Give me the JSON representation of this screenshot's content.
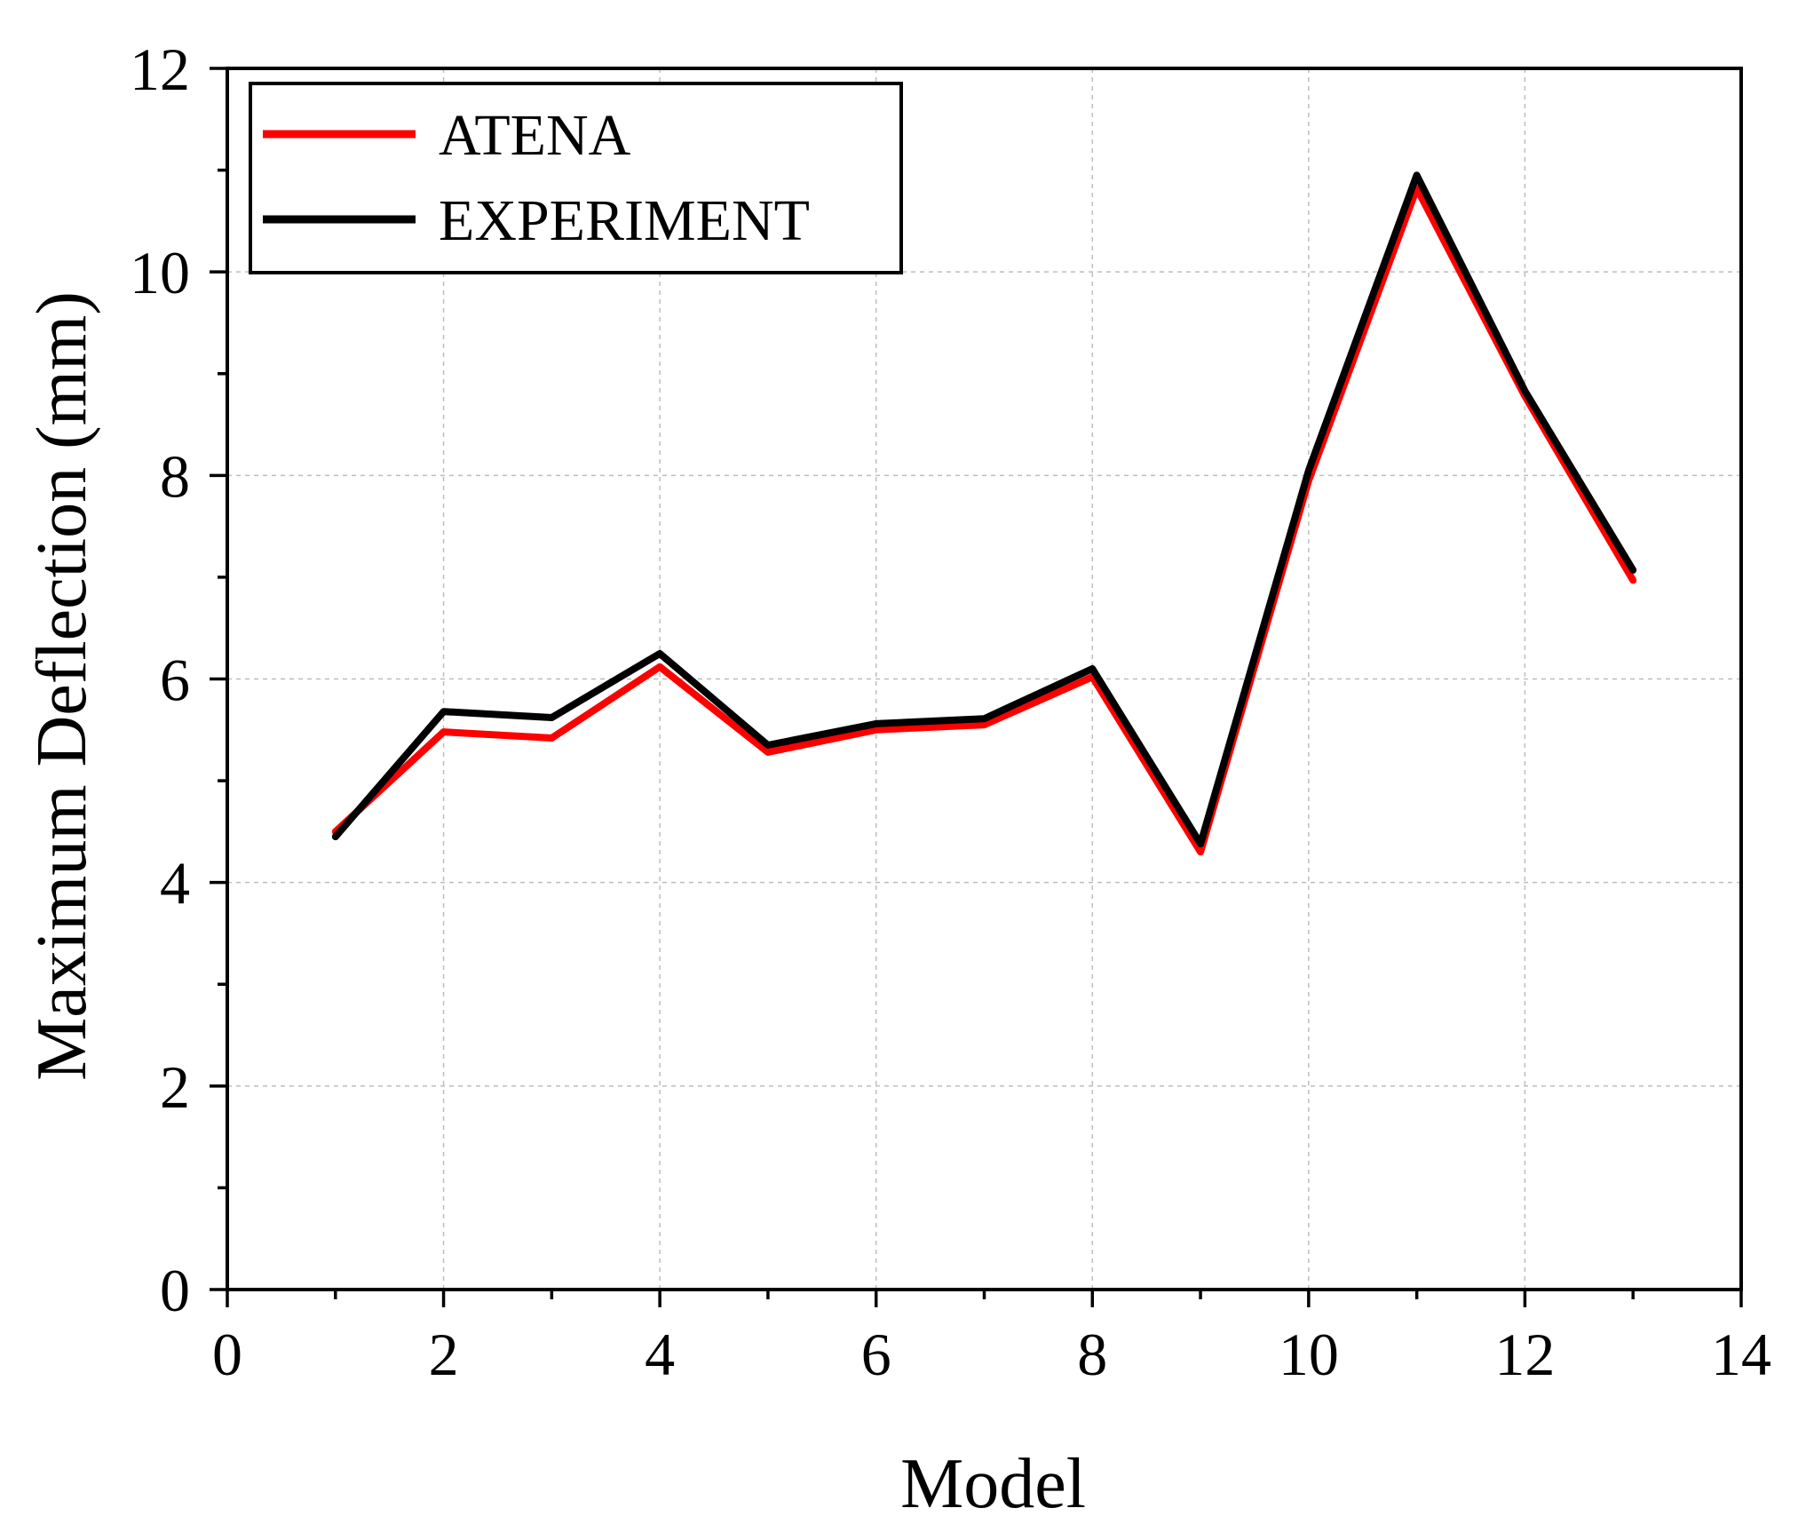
{
  "chart_data": {
    "type": "line",
    "title": "",
    "xlabel": "Model",
    "ylabel": "Maximum Deflection (mm)",
    "xlim": [
      0,
      14
    ],
    "ylim": [
      0,
      12
    ],
    "x_ticks": [
      0,
      2,
      4,
      6,
      8,
      10,
      12,
      14
    ],
    "y_ticks": [
      0,
      2,
      4,
      6,
      8,
      10,
      12
    ],
    "grid": true,
    "legend_position": "top-left",
    "x": [
      1,
      2,
      3,
      4,
      5,
      6,
      7,
      8,
      9,
      10,
      11,
      12,
      13
    ],
    "series": [
      {
        "name": "ATENA",
        "color": "#ff0000",
        "values": [
          4.5,
          5.48,
          5.42,
          6.12,
          5.28,
          5.5,
          5.55,
          6.02,
          4.3,
          7.95,
          10.82,
          8.78,
          6.97
        ]
      },
      {
        "name": "EXPERIMENT",
        "color": "#000000",
        "values": [
          4.45,
          5.68,
          5.62,
          6.25,
          5.35,
          5.56,
          5.61,
          6.1,
          4.38,
          8.05,
          10.95,
          8.83,
          7.07
        ]
      }
    ]
  }
}
